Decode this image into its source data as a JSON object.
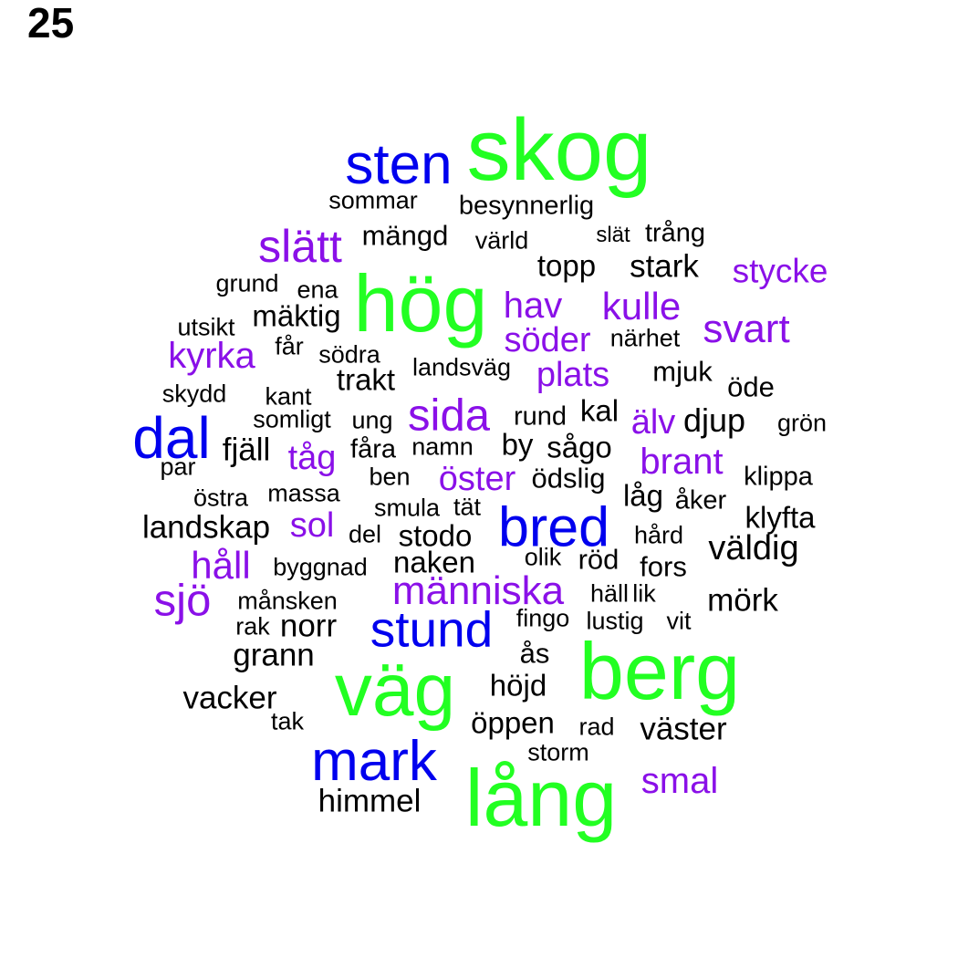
{
  "page_label": "25",
  "colors": {
    "green": "#22ff22",
    "blue": "#0000ee",
    "purple": "#8a10e8",
    "black": "#000000"
  },
  "words": [
    {
      "text": "skog",
      "color": "green"
    },
    {
      "text": "sten",
      "color": "blue"
    },
    {
      "text": "sommar",
      "color": "black"
    },
    {
      "text": "besynnerlig",
      "color": "black"
    },
    {
      "text": "slätt",
      "color": "purple"
    },
    {
      "text": "mängd",
      "color": "black"
    },
    {
      "text": "värld",
      "color": "black"
    },
    {
      "text": "slät",
      "color": "black"
    },
    {
      "text": "trång",
      "color": "black"
    },
    {
      "text": "topp",
      "color": "black"
    },
    {
      "text": "stark",
      "color": "black"
    },
    {
      "text": "stycke",
      "color": "purple"
    },
    {
      "text": "grund",
      "color": "black"
    },
    {
      "text": "ena",
      "color": "black"
    },
    {
      "text": "hög",
      "color": "green"
    },
    {
      "text": "hav",
      "color": "purple"
    },
    {
      "text": "kulle",
      "color": "purple"
    },
    {
      "text": "utsikt",
      "color": "black"
    },
    {
      "text": "mäktig",
      "color": "black"
    },
    {
      "text": "söder",
      "color": "purple"
    },
    {
      "text": "närhet",
      "color": "black"
    },
    {
      "text": "svart",
      "color": "purple"
    },
    {
      "text": "kyrka",
      "color": "purple"
    },
    {
      "text": "får",
      "color": "black"
    },
    {
      "text": "södra",
      "color": "black"
    },
    {
      "text": "landsväg",
      "color": "black"
    },
    {
      "text": "plats",
      "color": "purple"
    },
    {
      "text": "mjuk",
      "color": "black"
    },
    {
      "text": "trakt",
      "color": "black"
    },
    {
      "text": "öde",
      "color": "black"
    },
    {
      "text": "skydd",
      "color": "black"
    },
    {
      "text": "kant",
      "color": "black"
    },
    {
      "text": "sida",
      "color": "purple"
    },
    {
      "text": "kal",
      "color": "black"
    },
    {
      "text": "somligt",
      "color": "black"
    },
    {
      "text": "ung",
      "color": "black"
    },
    {
      "text": "rund",
      "color": "black"
    },
    {
      "text": "älv",
      "color": "purple"
    },
    {
      "text": "djup",
      "color": "black"
    },
    {
      "text": "grön",
      "color": "black"
    },
    {
      "text": "dal",
      "color": "blue"
    },
    {
      "text": "fjäll",
      "color": "black"
    },
    {
      "text": "fåra",
      "color": "black"
    },
    {
      "text": "namn",
      "color": "black"
    },
    {
      "text": "by",
      "color": "black"
    },
    {
      "text": "sågo",
      "color": "black"
    },
    {
      "text": "tåg",
      "color": "purple"
    },
    {
      "text": "brant",
      "color": "purple"
    },
    {
      "text": "par",
      "color": "black"
    },
    {
      "text": "ben",
      "color": "black"
    },
    {
      "text": "öster",
      "color": "purple"
    },
    {
      "text": "ödslig",
      "color": "black"
    },
    {
      "text": "klippa",
      "color": "black"
    },
    {
      "text": "östra",
      "color": "black"
    },
    {
      "text": "massa",
      "color": "black"
    },
    {
      "text": "smula",
      "color": "black"
    },
    {
      "text": "tät",
      "color": "black"
    },
    {
      "text": "låg",
      "color": "black"
    },
    {
      "text": "åker",
      "color": "black"
    },
    {
      "text": "bred",
      "color": "blue"
    },
    {
      "text": "klyfta",
      "color": "black"
    },
    {
      "text": "landskap",
      "color": "black"
    },
    {
      "text": "sol",
      "color": "purple"
    },
    {
      "text": "del",
      "color": "black"
    },
    {
      "text": "stodo",
      "color": "black"
    },
    {
      "text": "hård",
      "color": "black"
    },
    {
      "text": "väldig",
      "color": "black"
    },
    {
      "text": "håll",
      "color": "purple"
    },
    {
      "text": "byggnad",
      "color": "black"
    },
    {
      "text": "naken",
      "color": "black"
    },
    {
      "text": "olik",
      "color": "black"
    },
    {
      "text": "röd",
      "color": "black"
    },
    {
      "text": "fors",
      "color": "black"
    },
    {
      "text": "sjö",
      "color": "purple"
    },
    {
      "text": "människa",
      "color": "purple"
    },
    {
      "text": "häll",
      "color": "black"
    },
    {
      "text": "lik",
      "color": "black"
    },
    {
      "text": "månsken",
      "color": "black"
    },
    {
      "text": "mörk",
      "color": "black"
    },
    {
      "text": "rak",
      "color": "black"
    },
    {
      "text": "norr",
      "color": "black"
    },
    {
      "text": "stund",
      "color": "blue"
    },
    {
      "text": "fingo",
      "color": "black"
    },
    {
      "text": "lustig",
      "color": "black"
    },
    {
      "text": "vit",
      "color": "black"
    },
    {
      "text": "grann",
      "color": "black"
    },
    {
      "text": "ås",
      "color": "black"
    },
    {
      "text": "berg",
      "color": "green"
    },
    {
      "text": "väg",
      "color": "green"
    },
    {
      "text": "höjd",
      "color": "black"
    },
    {
      "text": "vacker",
      "color": "black"
    },
    {
      "text": "tak",
      "color": "black"
    },
    {
      "text": "öppen",
      "color": "black"
    },
    {
      "text": "rad",
      "color": "black"
    },
    {
      "text": "väster",
      "color": "black"
    },
    {
      "text": "storm",
      "color": "black"
    },
    {
      "text": "mark",
      "color": "blue"
    },
    {
      "text": "lång",
      "color": "green"
    },
    {
      "text": "smal",
      "color": "purple"
    },
    {
      "text": "himmel",
      "color": "black"
    }
  ]
}
